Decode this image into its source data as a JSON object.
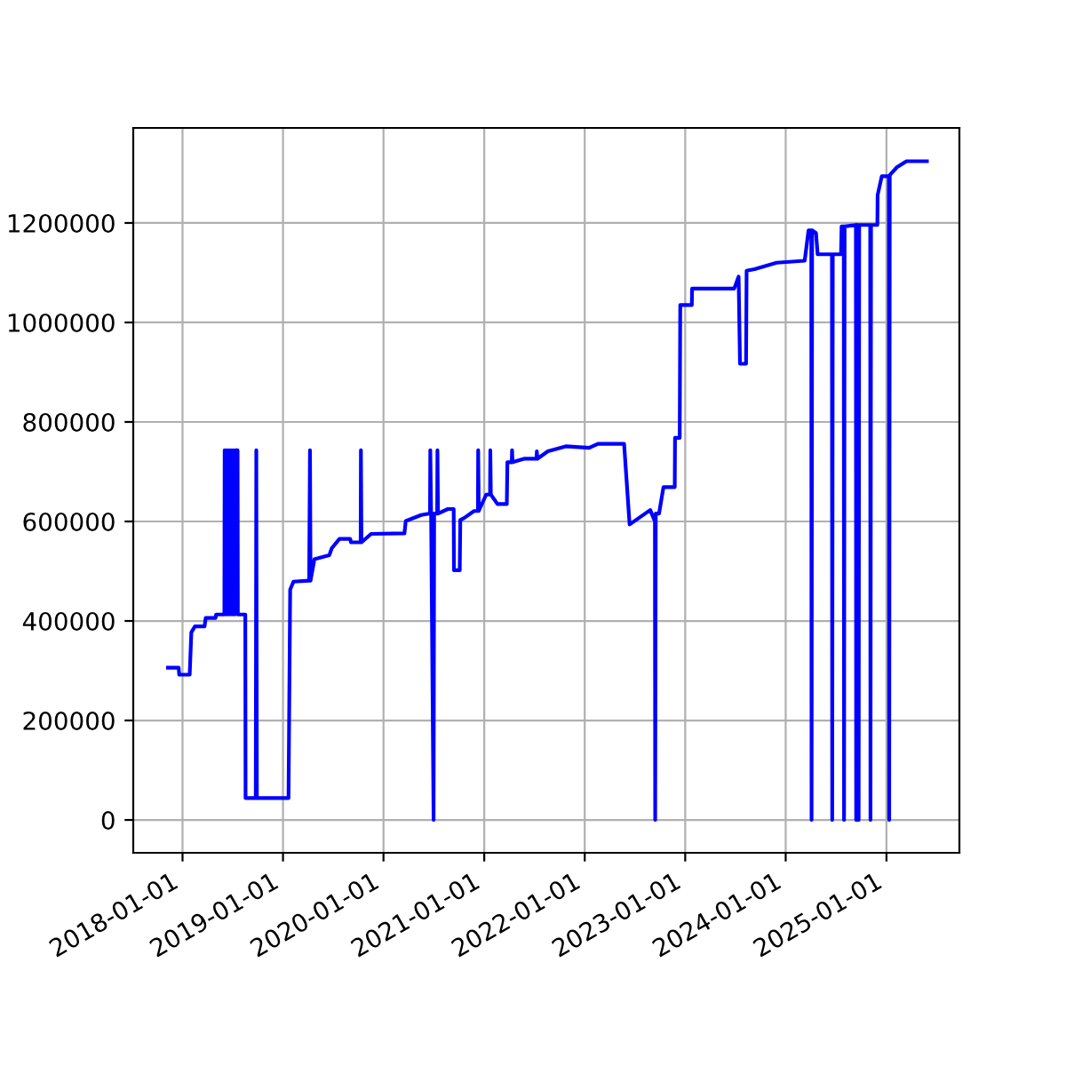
{
  "chart_data": {
    "type": "line",
    "x": [
      "2017-11-09",
      "2017-12-18",
      "2017-12-20",
      "2018-01-27",
      "2018-02-02",
      "2018-02-15",
      "2018-03-22",
      "2018-03-26",
      "2018-05-01",
      "2018-05-03",
      "2018-06-02",
      "2018-06-03",
      "2018-06-08",
      "2018-06-10",
      "2018-06-16",
      "2018-06-18",
      "2018-06-24",
      "2018-06-26",
      "2018-07-02",
      "2018-07-04",
      "2018-07-10",
      "2018-07-12",
      "2018-07-20",
      "2018-07-21",
      "2018-08-17",
      "2018-08-18",
      "2018-09-24",
      "2018-09-26",
      "2018-09-28",
      "2019-01-21",
      "2019-01-27",
      "2019-02-08",
      "2019-04-06",
      "2019-04-09",
      "2019-04-11",
      "2019-04-25",
      "2019-06-18",
      "2019-06-27",
      "2019-07-25",
      "2019-09-02",
      "2019-09-05",
      "2019-10-10",
      "2019-10-11",
      "2019-10-13",
      "2019-11-17",
      "2020-03-17",
      "2020-03-22",
      "2020-05-17",
      "2020-06-18",
      "2020-06-19",
      "2020-06-22",
      "2020-07-01",
      "2020-07-03",
      "2020-07-14",
      "2020-07-15",
      "2020-07-17",
      "2020-08-22",
      "2020-09-12",
      "2020-09-13",
      "2020-10-04",
      "2020-10-06",
      "2020-10-20",
      "2020-11-25",
      "2020-12-09",
      "2020-12-10",
      "2020-12-12",
      "2021-01-08",
      "2021-01-22",
      "2021-01-23",
      "2021-01-25",
      "2021-02-18",
      "2021-03-24",
      "2021-03-26",
      "2021-04-11",
      "2021-04-12",
      "2021-04-14",
      "2021-05-25",
      "2021-07-10",
      "2021-07-11",
      "2021-07-13",
      "2021-08-20",
      "2021-10-24",
      "2022-01-17",
      "2022-02-18",
      "2022-05-24",
      "2022-06-13",
      "2022-08-27",
      "2022-09-13",
      "2022-09-14",
      "2022-09-16",
      "2022-09-28",
      "2022-10-14",
      "2022-11-24",
      "2022-11-25",
      "2022-12-12",
      "2022-12-14",
      "2023-01-25",
      "2023-01-26",
      "2023-06-28",
      "2023-07-14",
      "2023-07-19",
      "2023-08-10",
      "2023-08-12",
      "2023-09-10",
      "2023-11-29",
      "2024-03-10",
      "2024-03-24",
      "2024-04-03",
      "2024-04-04",
      "2024-04-06",
      "2024-04-20",
      "2024-04-26",
      "2024-06-17",
      "2024-06-18",
      "2024-06-20",
      "2024-07-20",
      "2024-07-22",
      "2024-07-30",
      "2024-07-31",
      "2024-08-02",
      "2024-09-12",
      "2024-09-13",
      "2024-09-15",
      "2024-09-21",
      "2024-09-22",
      "2024-09-24",
      "2024-11-03",
      "2024-11-04",
      "2024-11-06",
      "2024-11-29",
      "2024-11-30",
      "2024-12-15",
      "2025-01-10",
      "2025-01-11",
      "2025-01-13",
      "2025-02-08",
      "2025-03-15",
      "2025-05-28"
    ],
    "series": [
      {
        "color": "#0000ff",
        "values": [
          306000,
          306000,
          292000,
          292000,
          377000,
          389000,
          389000,
          406000,
          406000,
          413000,
          413000,
          743000,
          413000,
          743000,
          413000,
          743000,
          413000,
          743000,
          413000,
          743000,
          413000,
          743000,
          743000,
          413000,
          413000,
          44000,
          44000,
          743000,
          44000,
          44000,
          463000,
          479000,
          481000,
          743000,
          481000,
          524000,
          532000,
          546000,
          565000,
          565000,
          558000,
          558000,
          743000,
          558000,
          575000,
          576000,
          601000,
          613000,
          616000,
          743000,
          616000,
          0,
          616000,
          616000,
          743000,
          616000,
          625000,
          625000,
          502000,
          502000,
          603000,
          607000,
          621000,
          621000,
          743000,
          621000,
          654000,
          654000,
          743000,
          654000,
          635000,
          635000,
          719000,
          719000,
          743000,
          719000,
          726000,
          726000,
          741000,
          726000,
          741000,
          751000,
          748000,
          756000,
          756000,
          594000,
          623000,
          600000,
          0,
          616000,
          616000,
          669000,
          669000,
          768000,
          768000,
          1035000,
          1035000,
          1068000,
          1068000,
          1092000,
          917000,
          917000,
          1104000,
          1107000,
          1120000,
          1124000,
          1185000,
          1185000,
          0,
          1185000,
          1180000,
          1137000,
          1137000,
          0,
          1137000,
          1137000,
          1193000,
          1193000,
          0,
          1193000,
          1196000,
          0,
          1196000,
          1196000,
          0,
          1196000,
          1196000,
          0,
          1196000,
          1196000,
          1256000,
          1294000,
          1294000,
          0,
          1296000,
          1312000,
          1324000,
          1324000
        ]
      }
    ],
    "xlim": [
      "2017-07-06",
      "2025-09-23"
    ],
    "xticks": [
      "2018-01-01",
      "2019-01-01",
      "2020-01-01",
      "2021-01-01",
      "2022-01-01",
      "2023-01-01",
      "2024-01-01",
      "2025-01-01"
    ],
    "ylim": [
      -66000,
      1391000
    ],
    "yticks": [
      0,
      200000,
      400000,
      600000,
      800000,
      1000000,
      1200000
    ],
    "grid": true,
    "legend": false,
    "marker": "none",
    "line_style": "solid"
  }
}
